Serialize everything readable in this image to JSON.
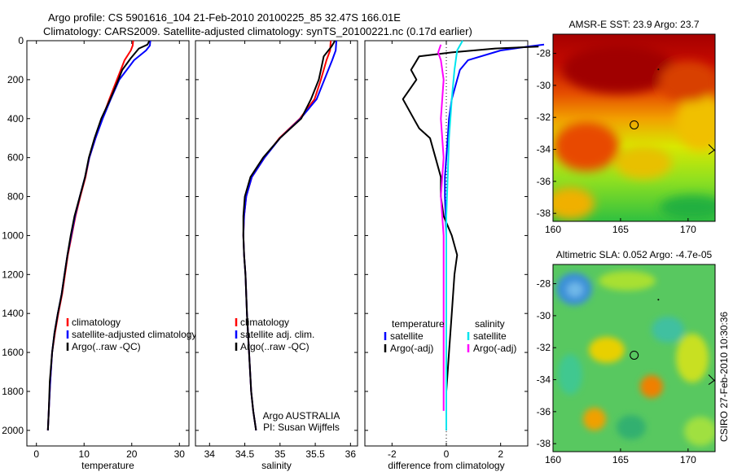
{
  "title_line1": "Argo profile: CS 5901616_104 21-Feb-2010 20100225_85 32.47S 166.01E",
  "title_line2": "Climatology: CARS2009. Satellite-adjusted climatology: synTS_20100221.nc (0.17d earlier)",
  "side_label": "CSIRO 27-Feb-2010 10:30:36",
  "colors": {
    "clim": "#ff0000",
    "sat": "#0000ff",
    "argo": "#000000",
    "sat_sal": "#00e5ee",
    "argo_sal": "#ff00ff"
  },
  "chart_data": [
    {
      "id": "temp",
      "type": "line",
      "xlabel": "temperature",
      "xlim": [
        -2,
        32
      ],
      "ylim": [
        2080,
        0
      ],
      "xticks": [
        0,
        10,
        20,
        30
      ],
      "yticks": [
        0,
        200,
        400,
        600,
        800,
        1000,
        1200,
        1400,
        1600,
        1800,
        2000
      ],
      "legend": [
        "climatology",
        "satellite-adjusted climatology",
        "Argo(..raw -QC)"
      ],
      "series": [
        {
          "name": "climatology",
          "color_key": "clim",
          "x": [
            20.3,
            20.2,
            19.8,
            18.5,
            16.9,
            15.3,
            13.8,
            12.4,
            11.1,
            10.3,
            9.2,
            8.2,
            7.4,
            6.6,
            6.0,
            5.4,
            4.6,
            3.9,
            3.3,
            2.9,
            2.6,
            2.4
          ],
          "y": [
            0,
            25,
            50,
            100,
            200,
            300,
            400,
            500,
            600,
            700,
            800,
            900,
            1000,
            1100,
            1200,
            1300,
            1400,
            1500,
            1600,
            1750,
            1900,
            2000
          ]
        },
        {
          "name": "satellite-adjusted climatology",
          "color_key": "sat",
          "x": [
            23.9,
            23.8,
            23.0,
            20.5,
            17.4,
            15.6,
            13.9,
            12.4,
            11.1,
            10.2,
            9.1,
            8.1,
            7.3,
            6.5,
            5.9,
            5.3,
            4.5,
            3.8,
            3.3,
            2.9,
            2.6,
            2.4
          ],
          "y": [
            0,
            25,
            50,
            100,
            200,
            300,
            400,
            500,
            600,
            700,
            800,
            900,
            1000,
            1100,
            1200,
            1300,
            1400,
            1500,
            1600,
            1750,
            1900,
            2000
          ]
        },
        {
          "name": "Argo(..raw -QC)",
          "color_key": "argo",
          "x": [
            23.7,
            23.3,
            21.5,
            19.8,
            18.0,
            17.2,
            15.5,
            13.6,
            12.2,
            11.0,
            10.2,
            9.1,
            8.0,
            7.2,
            6.5,
            5.9,
            5.3,
            4.5,
            3.8,
            3.3,
            2.8,
            2.6,
            2.4
          ],
          "y": [
            0,
            20,
            40,
            90,
            150,
            200,
            300,
            400,
            500,
            600,
            700,
            800,
            900,
            1000,
            1100,
            1200,
            1300,
            1400,
            1500,
            1600,
            1750,
            1900,
            2000
          ]
        }
      ]
    },
    {
      "id": "salt",
      "type": "line",
      "xlabel": "salinity",
      "xlim": [
        33.8,
        36.1
      ],
      "ylim": [
        2080,
        0
      ],
      "xticks": [
        34,
        34.5,
        35,
        35.5,
        36
      ],
      "legend": [
        "climatology",
        "satellite adj. clim.",
        "Argo(..raw -QC)"
      ],
      "note_lines": [
        "Argo AUSTRALIA",
        "PI: Susan Wijffels"
      ],
      "series": [
        {
          "name": "climatology",
          "color_key": "clim",
          "x": [
            35.72,
            35.71,
            35.66,
            35.58,
            35.49,
            35.28,
            34.99,
            34.78,
            34.6,
            34.52,
            34.49,
            34.48,
            34.49,
            34.51,
            34.53,
            34.56,
            34.59,
            34.62,
            34.66
          ],
          "y": [
            0,
            50,
            100,
            200,
            300,
            400,
            500,
            600,
            700,
            800,
            900,
            1000,
            1100,
            1200,
            1400,
            1600,
            1800,
            1900,
            2000
          ]
        },
        {
          "name": "satellite adj. clim.",
          "color_key": "sat",
          "x": [
            35.8,
            35.79,
            35.74,
            35.63,
            35.52,
            35.29,
            35.0,
            34.78,
            34.6,
            34.52,
            34.49,
            34.48,
            34.49,
            34.51,
            34.53,
            34.56,
            34.59,
            34.62,
            34.66
          ],
          "y": [
            0,
            50,
            100,
            200,
            300,
            400,
            500,
            600,
            700,
            800,
            900,
            1000,
            1100,
            1200,
            1400,
            1600,
            1800,
            1900,
            2000
          ]
        },
        {
          "name": "Argo(..raw -QC)",
          "color_key": "argo",
          "x": [
            35.78,
            35.73,
            35.62,
            35.58,
            35.55,
            35.44,
            35.3,
            35.0,
            34.76,
            34.58,
            34.5,
            34.48,
            34.48,
            34.49,
            34.51,
            34.53,
            34.56,
            34.59,
            34.62,
            34.66
          ],
          "y": [
            0,
            30,
            80,
            150,
            200,
            300,
            400,
            500,
            600,
            700,
            800,
            900,
            1000,
            1100,
            1200,
            1400,
            1600,
            1800,
            1900,
            2000
          ]
        }
      ]
    },
    {
      "id": "diff",
      "type": "line",
      "xlabel": "difference from climatology",
      "xlim": [
        -3,
        3
      ],
      "ylim": [
        2080,
        0
      ],
      "xticks": [
        -2,
        0,
        2
      ],
      "legend_left_title": "temperature",
      "legend_right_title": "salinity",
      "legend_left": [
        "satellite",
        "Argo(-adj)"
      ],
      "legend_right": [
        "satellite",
        "Argo(-adj)"
      ],
      "series": [
        {
          "name": "temperature satellite",
          "color_key": "sat",
          "x": [
            3.6,
            3.0,
            2.0,
            0.8,
            0.5,
            0.4,
            0.2,
            0.1,
            0.05,
            0.0,
            -0.05,
            -0.05,
            0.0,
            0.0,
            0.0,
            0.0,
            0.0,
            0.0
          ],
          "y": [
            20,
            30,
            50,
            100,
            150,
            200,
            300,
            400,
            500,
            600,
            700,
            800,
            1000,
            1200,
            1400,
            1600,
            1800,
            2000
          ]
        },
        {
          "name": "temperature Argo(-adj)",
          "color_key": "argo",
          "x": [
            3.4,
            1.8,
            0.2,
            -1.0,
            -1.3,
            -1.1,
            -1.6,
            -1.2,
            -1.0,
            -0.6,
            -0.4,
            -0.2,
            -0.2,
            -0.1,
            0.2,
            0.4,
            0.3,
            0.2,
            0.1,
            0.0,
            0.0,
            0.0
          ],
          "y": [
            30,
            40,
            60,
            80,
            150,
            200,
            300,
            400,
            450,
            500,
            600,
            700,
            800,
            900,
            1000,
            1100,
            1200,
            1400,
            1600,
            1800,
            1900,
            2000
          ]
        },
        {
          "name": "salinity satellite",
          "color_key": "sat_sal",
          "x": [
            0.6,
            0.4,
            0.3,
            0.2,
            0.1,
            0.05,
            0.0,
            0.0,
            0.0,
            0.0,
            0.0,
            0.0
          ],
          "y": [
            0,
            50,
            150,
            300,
            500,
            700,
            900,
            1100,
            1400,
            1600,
            1800,
            2000
          ]
        },
        {
          "name": "salinity Argo(-adj)",
          "color_key": "argo_sal",
          "x": [
            -0.2,
            -0.3,
            -0.2,
            -0.1,
            -0.2,
            -0.1,
            -0.2,
            -0.1,
            -0.1,
            -0.1,
            -0.1,
            -0.1,
            -0.1,
            -0.1
          ],
          "y": [
            20,
            60,
            100,
            200,
            400,
            600,
            800,
            1000,
            1200,
            1400,
            1600,
            1700,
            1800,
            1900
          ]
        }
      ]
    },
    {
      "id": "sst_map",
      "type": "heatmap",
      "title": "AMSR-E SST: 23.9 Argo: 23.7",
      "xlim": [
        160,
        172
      ],
      "ylim": [
        -38.5,
        -26.8
      ],
      "xticks": [
        160,
        165,
        170
      ],
      "yticks": [
        -28,
        -30,
        -32,
        -34,
        -36,
        -38
      ],
      "marker": {
        "lon": 166.01,
        "lat": -32.47
      }
    },
    {
      "id": "sla_map",
      "type": "heatmap",
      "title": "Altimetric SLA: 0.052 Argo: -4.7e-05",
      "xlim": [
        160,
        172
      ],
      "ylim": [
        -38.5,
        -26.8
      ],
      "xticks": [
        160,
        165,
        170
      ],
      "yticks": [
        -28,
        -30,
        -32,
        -34,
        -36,
        -38
      ],
      "marker": {
        "lon": 166.01,
        "lat": -32.47
      }
    }
  ]
}
